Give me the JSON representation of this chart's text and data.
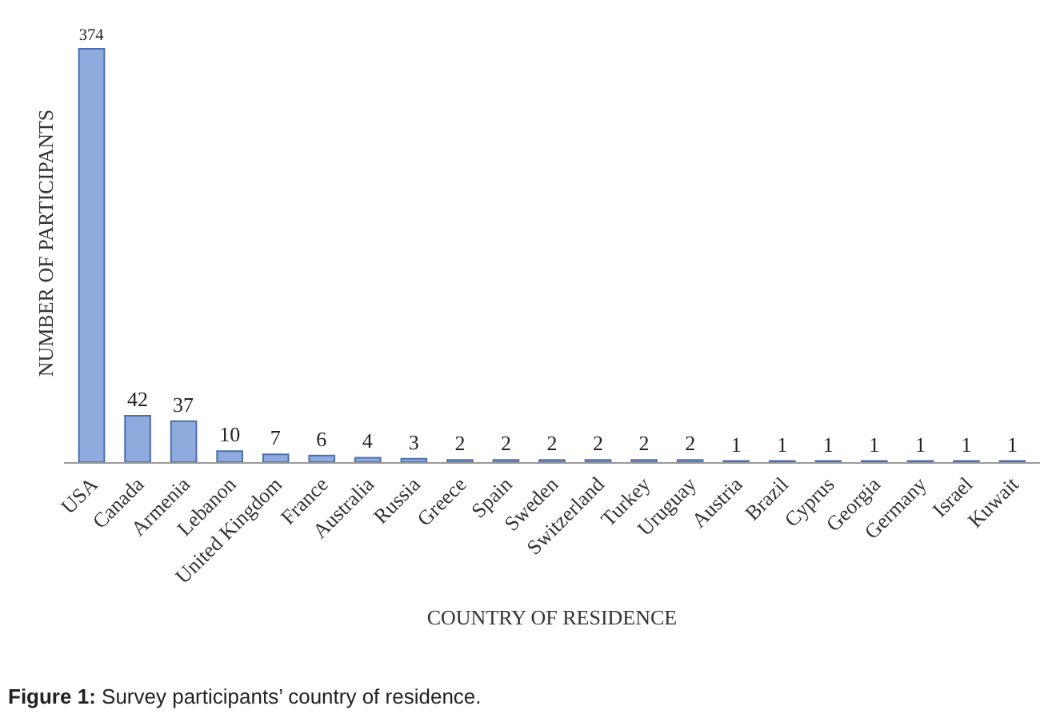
{
  "chart_data": {
    "type": "bar",
    "xlabel": "COUNTRY OF RESIDENCE",
    "ylabel": "NUMBER OF PARTICIPANTS",
    "categories": [
      "USA",
      "Canada",
      "Armenia",
      "Lebanon",
      "United Kingdom",
      "France",
      "Australia",
      "Russia",
      "Greece",
      "Spain",
      "Sweden",
      "Switzerland",
      "Turkey",
      "Uruguay",
      "Austria",
      "Brazil",
      "Cyprus",
      "Georgia",
      "Germany",
      "Israel",
      "Kuwait"
    ],
    "values": [
      374,
      42,
      37,
      10,
      7,
      6,
      4,
      3,
      2,
      2,
      2,
      2,
      2,
      2,
      1,
      1,
      1,
      1,
      1,
      1,
      1
    ],
    "color": "#8faadc",
    "data_labels": true,
    "legend": false,
    "annotations": [
      "Figure 1: Survey participants’ country of residence."
    ]
  }
}
